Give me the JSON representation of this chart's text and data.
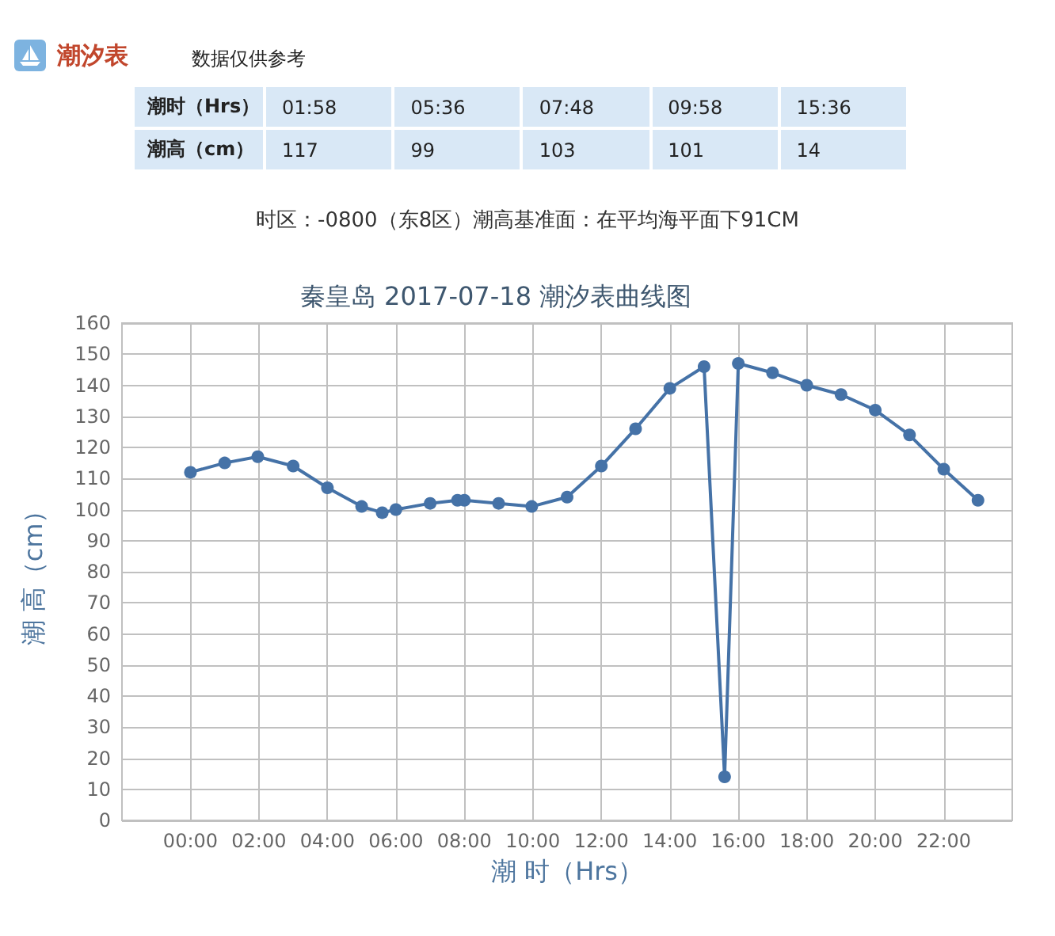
{
  "chart_data": [
    {
      "type": "other",
      "title": "潮汐表",
      "subtitle": "数据仅供参考",
      "xlabel": "潮时（Hrs）",
      "ylabel": "潮高（cm）",
      "categories": [
        "01:58",
        "05:36",
        "07:48",
        "09:58",
        "15:36"
      ],
      "values": [
        117,
        99,
        103,
        101,
        14
      ],
      "data_labels": true,
      "annotations": [
        "时区：-0800（东8区）潮高基准面：在平均海平面下91CM"
      ]
    },
    {
      "type": "line",
      "title": "秦皇岛 2017-07-18 潮汐表曲线图",
      "xlabel": "潮 时（Hrs）",
      "ylabel": "潮 高（cm）",
      "color": "#4572a7",
      "marker": "circle",
      "grid": true,
      "x": [
        0,
        1,
        1.967,
        3,
        4,
        5,
        5.6,
        6,
        7,
        7.8,
        8,
        9,
        9.967,
        11,
        12,
        13,
        14,
        15,
        15.6,
        16,
        17,
        18,
        19,
        20,
        21,
        22,
        23
      ],
      "values": [
        112,
        115,
        117,
        114,
        107,
        101,
        99,
        100,
        102,
        103,
        103,
        102,
        101,
        104,
        114,
        126,
        139,
        146,
        14,
        147,
        144,
        140,
        137,
        132,
        124,
        113,
        103
      ],
      "xlim": [
        -2,
        24
      ],
      "xticks": [
        {
          "value": 0,
          "label": "00:00"
        },
        {
          "value": 2,
          "label": "02:00"
        },
        {
          "value": 4,
          "label": "04:00"
        },
        {
          "value": 6,
          "label": "06:00"
        },
        {
          "value": 8,
          "label": "08:00"
        },
        {
          "value": 10,
          "label": "10:00"
        },
        {
          "value": 12,
          "label": "12:00"
        },
        {
          "value": 14,
          "label": "14:00"
        },
        {
          "value": 16,
          "label": "16:00"
        },
        {
          "value": 18,
          "label": "18:00"
        },
        {
          "value": 20,
          "label": "20:00"
        },
        {
          "value": 22,
          "label": "22:00"
        }
      ],
      "ylim": [
        0,
        160
      ],
      "yticks": [
        0,
        10,
        20,
        30,
        40,
        50,
        60,
        70,
        80,
        90,
        100,
        110,
        120,
        130,
        140,
        150,
        160
      ]
    }
  ]
}
